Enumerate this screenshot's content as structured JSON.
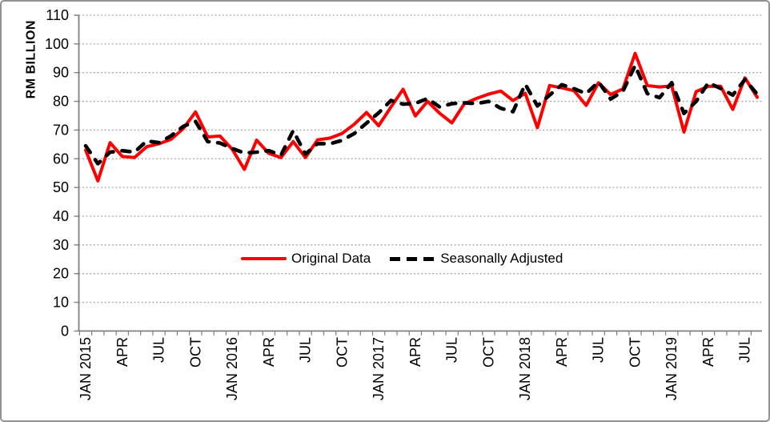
{
  "chart_data": {
    "type": "line",
    "title": "",
    "ylabel": "RM BILLION",
    "ylim": [
      0,
      110
    ],
    "ytick_step": 10,
    "y_tick_labels": [
      "0",
      "10",
      "20",
      "30",
      "40",
      "50",
      "60",
      "70",
      "80",
      "90",
      "100",
      "110"
    ],
    "grid": "horizontal-dotted",
    "legend_position": "inside-bottom-center",
    "x_frequency": "monthly",
    "x_range": "JAN 2015 - AUG 2019",
    "x_tick_labels": [
      "JAN 2015",
      "APR",
      "JUL",
      "OCT",
      "JAN 2016",
      "APR",
      "JUL",
      "OCT",
      "JAN 2017",
      "APR",
      "JUL",
      "OCT",
      "JAN 2018",
      "APR",
      "JUL",
      "OCT",
      "JAN 2019",
      "APR",
      "JUL"
    ],
    "x_label_every": 3,
    "series": [
      {
        "name": "Original Data",
        "color": "#FF0000",
        "style": "solid",
        "values": [
          63.0,
          52.3,
          65.6,
          60.8,
          60.4,
          64.2,
          65.2,
          66.8,
          70.5,
          76.3,
          67.6,
          67.9,
          63.3,
          56.3,
          66.5,
          61.9,
          60.4,
          66.0,
          60.4,
          66.6,
          67.2,
          68.8,
          72.0,
          76.1,
          71.5,
          78.0,
          84.2,
          74.9,
          80.0,
          75.8,
          72.5,
          79.1,
          81.0,
          82.5,
          83.6,
          80.3,
          82.8,
          70.8,
          85.5,
          84.7,
          83.7,
          78.6,
          86.5,
          82.4,
          84.3,
          96.7,
          85.5,
          85.0,
          85.4,
          69.3,
          83.4,
          85.2,
          85.3,
          77.2,
          88.2,
          81.4
        ]
      },
      {
        "name": "Seasonally Adjusted",
        "color": "#000000",
        "style": "dashed",
        "values": [
          64.5,
          58.3,
          62.3,
          62.8,
          62.3,
          66.2,
          65.6,
          68.0,
          71.3,
          73.0,
          66.0,
          65.5,
          63.6,
          62.0,
          62.3,
          62.8,
          61.3,
          69.8,
          61.6,
          65.3,
          65.2,
          66.4,
          68.8,
          72.4,
          76.0,
          80.3,
          79.0,
          79.3,
          81.0,
          78.0,
          79.2,
          79.5,
          79.2,
          80.0,
          77.6,
          76.4,
          86.0,
          78.4,
          82.2,
          85.8,
          84.4,
          82.7,
          86.8,
          80.8,
          83.5,
          92.5,
          82.7,
          81.3,
          86.5,
          75.8,
          80.0,
          86.5,
          84.5,
          82.2,
          87.6,
          82.5
        ]
      }
    ]
  },
  "colors": {
    "series_original": "#FF0000",
    "series_adjusted": "#000000",
    "gridline": "#A0A0A0",
    "axis": "#808080",
    "text": "#000000",
    "chart_border": "#919191",
    "background": "#FFFFFF"
  }
}
